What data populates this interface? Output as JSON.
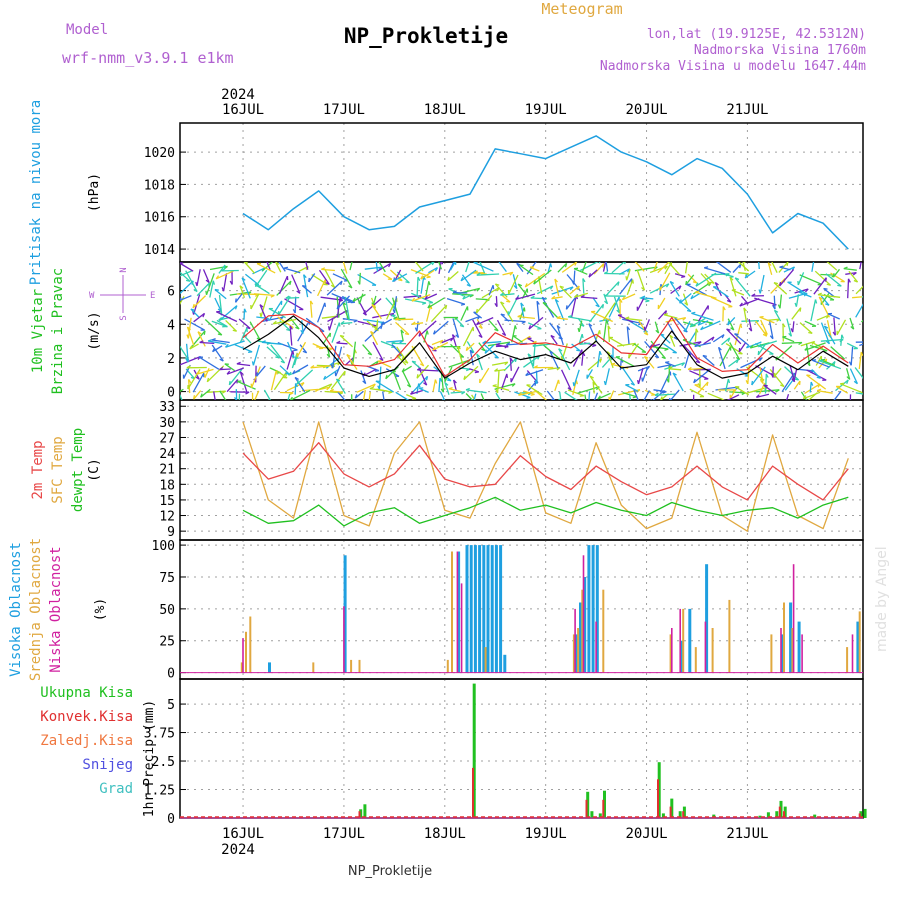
{
  "header": {
    "model_label": "Model",
    "model_name": "wrf-nmm_v3.9.1  e1km",
    "station": "NP_Prokletije",
    "product": "Meteogram",
    "lonlat": "lon,lat (19.9125E, 42.5312N)",
    "altitude": "Nadmorska Visina 1760m",
    "model_altitude": "Nadmorska Visina u modelu 1647.44m",
    "watermark": "made by Angel",
    "footer_station": "NP_Prokletije"
  },
  "colors": {
    "pressure": "#1e9fe0",
    "wind_speed": "#000000",
    "wind_gust": "#e83030",
    "t2m": "#e84848",
    "tsfc": "#e0a840",
    "dewpoint": "#20c020",
    "cloud_high": "#1e9fe0",
    "cloud_mid": "#e0a840",
    "cloud_low": "#d020a0",
    "precip_total": "#20c020",
    "precip_conv": "#e03030",
    "precip_frozen": "#f07840",
    "snow": "#5050e0",
    "hail": "#40c0c0"
  },
  "time_axis": {
    "top_year": "2024",
    "bottom_year": "2024",
    "days": [
      "16JUL",
      "17JUL",
      "18JUL",
      "19JUL",
      "20JUL",
      "21JUL"
    ]
  },
  "wind_compass": {
    "w": "W",
    "e": "E",
    "n": "N",
    "s": "S"
  },
  "panels": [
    {
      "id": "pressure",
      "labels": [
        "Pritisak na nivou mora"
      ],
      "unit": "(hPa)"
    },
    {
      "id": "wind",
      "labels": [
        "10m Vjetar",
        "Brzina i Pravac"
      ],
      "unit": "(m/s)"
    },
    {
      "id": "temp",
      "labels": [
        "2m Temp",
        "SFC Temp",
        "dewpt Temp"
      ],
      "unit": "(C)"
    },
    {
      "id": "cloud",
      "labels": [
        "Visoka Oblacnost",
        "Srednja Oblacnost",
        "Niska Oblacnost"
      ],
      "unit": "(%)"
    },
    {
      "id": "precip",
      "labels": [
        "Ukupna Kisa",
        "Konvek.Kisa",
        "Zaledj.Kisa",
        "Snijeg",
        "Grad"
      ],
      "unit": "1hr Precip (mm)"
    }
  ],
  "chart_data": [
    {
      "type": "line",
      "id": "pressure",
      "ylabel": "(hPa)",
      "ylim": [
        1013.2,
        1021.8
      ],
      "yticks": [
        1014,
        1016,
        1018,
        1020
      ],
      "grid": true,
      "x_hours": [
        0,
        6,
        12,
        18,
        24,
        30,
        36,
        42,
        48,
        54,
        60,
        66,
        72,
        78,
        84,
        90,
        96,
        102,
        108,
        114,
        120,
        126,
        132,
        138,
        144
      ],
      "series": [
        {
          "values": [
            1016.2,
            1015.2,
            1016.5,
            1017.6,
            1016.0,
            1015.2,
            1015.4,
            1016.6,
            1017.0,
            1017.4,
            1020.2,
            1019.9,
            1019.6,
            1020.3,
            1021.0,
            1020.0,
            1019.4,
            1018.6,
            1019.6,
            1019.0,
            1017.4,
            1015.0,
            1016.2,
            1015.6,
            1014.0
          ]
        }
      ]
    },
    {
      "type": "line",
      "id": "wind",
      "ylabel": "(m/s)",
      "ylim": [
        -0.5,
        7.7
      ],
      "yticks": [
        0,
        2,
        4,
        6
      ],
      "grid": true,
      "x_hours": [
        0,
        6,
        12,
        18,
        24,
        30,
        36,
        42,
        48,
        54,
        60,
        66,
        72,
        78,
        84,
        90,
        96,
        102,
        108,
        114,
        120,
        126,
        132,
        138,
        144
      ],
      "series": [
        {
          "values": [
            2.5,
            3.4,
            4.5,
            3.2,
            1.4,
            0.9,
            1.3,
            2.9,
            0.8,
            1.7,
            2.4,
            1.9,
            2.2,
            1.7,
            3.0,
            1.4,
            1.6,
            3.6,
            1.6,
            0.8,
            1.1,
            2.1,
            1.3,
            2.4,
            1.5
          ]
        },
        {
          "values": [
            3.2,
            4.5,
            4.6,
            3.8,
            1.6,
            1.5,
            1.9,
            3.6,
            0.9,
            1.9,
            3.5,
            2.8,
            2.9,
            2.6,
            3.4,
            2.3,
            2.2,
            4.4,
            2.0,
            1.2,
            1.3,
            2.8,
            1.7,
            2.7,
            1.7
          ]
        }
      ]
    },
    {
      "type": "line",
      "id": "temp",
      "ylabel": "(C)",
      "ylim": [
        7.3,
        34.2
      ],
      "yticks": [
        9,
        12,
        15,
        18,
        21,
        24,
        27,
        30,
        33
      ],
      "grid": true,
      "x_hours": [
        0,
        6,
        12,
        18,
        24,
        30,
        36,
        42,
        48,
        54,
        60,
        66,
        72,
        78,
        84,
        90,
        96,
        102,
        108,
        114,
        120,
        126,
        132,
        138,
        144
      ],
      "series": [
        {
          "values": [
            24.0,
            19.0,
            20.5,
            26.0,
            20.0,
            17.5,
            20.0,
            25.5,
            19.0,
            17.5,
            18.0,
            23.5,
            19.5,
            17.0,
            21.5,
            18.5,
            16.0,
            17.5,
            21.5,
            17.5,
            15.0,
            21.5,
            18.0,
            15.0,
            21.0
          ]
        },
        {
          "values": [
            30.0,
            15.0,
            11.5,
            30.0,
            12.0,
            10.0,
            24.0,
            30.0,
            13.0,
            11.5,
            22.0,
            30.0,
            12.5,
            10.5,
            26.0,
            14.0,
            9.5,
            11.5,
            28.0,
            12.0,
            9.0,
            27.5,
            12.0,
            9.5,
            23.0
          ]
        },
        {
          "values": [
            13.0,
            10.5,
            11.0,
            14.0,
            10.0,
            12.5,
            13.5,
            10.5,
            12.0,
            13.5,
            15.5,
            13.0,
            14.0,
            12.5,
            14.5,
            13.0,
            12.0,
            14.5,
            13.0,
            12.0,
            13.0,
            13.5,
            11.5,
            14.0,
            15.5
          ]
        }
      ]
    },
    {
      "type": "bar",
      "id": "cloud",
      "ylabel": "(%)",
      "ylim": [
        -5,
        104
      ],
      "yticks": [
        0,
        25,
        50,
        75,
        100
      ],
      "grid": true,
      "series": [
        {
          "name": "Visoka Oblacnost",
          "values": [
            [
              6,
              8
            ],
            [
              24,
              92
            ],
            [
              51,
              95
            ],
            [
              53,
              100
            ],
            [
              54,
              100
            ],
            [
              55,
              100
            ],
            [
              56,
              100
            ],
            [
              57,
              100
            ],
            [
              58,
              100
            ],
            [
              59,
              100
            ],
            [
              60,
              100
            ],
            [
              61,
              100
            ],
            [
              62,
              14
            ],
            [
              79,
              30
            ],
            [
              80,
              55
            ],
            [
              81,
              75
            ],
            [
              82,
              100
            ],
            [
              83,
              100
            ],
            [
              84,
              100
            ],
            [
              104,
              25
            ],
            [
              106,
              50
            ],
            [
              110,
              85
            ],
            [
              128,
              30
            ],
            [
              130,
              55
            ],
            [
              132,
              40
            ],
            [
              146,
              40
            ]
          ]
        },
        {
          "name": "Srednja Oblacnost",
          "values": [
            [
              0,
              8
            ],
            [
              1,
              32
            ],
            [
              2,
              44
            ],
            [
              17,
              8
            ],
            [
              26,
              10
            ],
            [
              28,
              10
            ],
            [
              49,
              10
            ],
            [
              50,
              95
            ],
            [
              58,
              20
            ],
            [
              79,
              30
            ],
            [
              80,
              35
            ],
            [
              81,
              65
            ],
            [
              86,
              65
            ],
            [
              102,
              30
            ],
            [
              105,
              50
            ],
            [
              108,
              20
            ],
            [
              112,
              35
            ],
            [
              116,
              57
            ],
            [
              126,
              30
            ],
            [
              129,
              55
            ],
            [
              131,
              35
            ],
            [
              144,
              20
            ],
            [
              147,
              48
            ]
          ]
        },
        {
          "name": "Niska Oblacnost",
          "values": [
            [
              0,
              27
            ],
            [
              24,
              52
            ],
            [
              51,
              95
            ],
            [
              52,
              70
            ],
            [
              79,
              50
            ],
            [
              81,
              92
            ],
            [
              84,
              40
            ],
            [
              102,
              35
            ],
            [
              104,
              50
            ],
            [
              110,
              40
            ],
            [
              128,
              35
            ],
            [
              131,
              85
            ],
            [
              133,
              30
            ],
            [
              145,
              30
            ]
          ]
        }
      ]
    },
    {
      "type": "bar",
      "id": "precip",
      "ylabel": "1hr Precip (mm)",
      "ylim": [
        0,
        6.1
      ],
      "yticks": [
        0,
        1.25,
        2.5,
        3.75,
        5
      ],
      "yticklabels": [
        "0",
        "1.25",
        "2.5",
        "3.75",
        "5"
      ],
      "grid": true,
      "series": [
        {
          "name": "Ukupna Kisa",
          "values": [
            [
              28,
              0.38
            ],
            [
              29,
              0.6
            ],
            [
              55,
              5.9
            ],
            [
              82,
              1.15
            ],
            [
              83,
              0.3
            ],
            [
              85,
              0.2
            ],
            [
              86,
              1.2
            ],
            [
              99,
              2.45
            ],
            [
              100,
              0.2
            ],
            [
              102,
              0.85
            ],
            [
              104,
              0.3
            ],
            [
              105,
              0.5
            ],
            [
              112,
              0.15
            ],
            [
              123,
              0.1
            ],
            [
              125,
              0.25
            ],
            [
              127,
              0.3
            ],
            [
              128,
              0.75
            ],
            [
              129,
              0.5
            ],
            [
              136,
              0.15
            ],
            [
              147,
              0.3
            ],
            [
              148,
              0.4
            ]
          ]
        },
        {
          "name": "Konvek.Kisa",
          "values": [
            [
              28,
              0.3
            ],
            [
              55,
              2.2
            ],
            [
              82,
              0.8
            ],
            [
              86,
              0.8
            ],
            [
              99,
              1.7
            ],
            [
              102,
              0.5
            ],
            [
              105,
              0.3
            ],
            [
              128,
              0.5
            ],
            [
              129,
              0.3
            ],
            [
              147,
              0.2
            ]
          ]
        }
      ]
    }
  ]
}
